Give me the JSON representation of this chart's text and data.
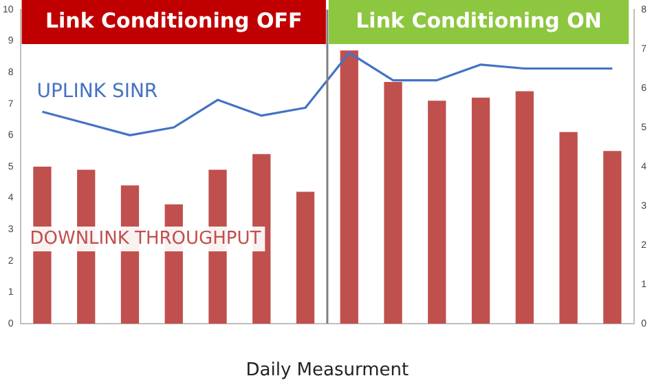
{
  "chart_data": {
    "type": "bar",
    "categories": [
      null,
      null,
      null,
      null,
      null,
      null,
      null,
      null,
      null,
      null,
      null,
      null,
      null,
      null
    ],
    "xlabel": "Daily Measurment",
    "series": [
      {
        "name": "DOWNLINK THROUGHPUT",
        "color": "#c0504d",
        "values": [
          5.0,
          4.9,
          4.4,
          3.8,
          4.9,
          5.4,
          4.2,
          8.7,
          7.7,
          7.1,
          7.2,
          7.4,
          6.1,
          5.5
        ]
      },
      {
        "name": "UPLINK SINR",
        "type": "line",
        "axis": "y2",
        "color": "#4472c4",
        "values": [
          5.4,
          5.1,
          4.8,
          5.0,
          5.7,
          5.3,
          5.5,
          6.9,
          6.2,
          6.2,
          6.6,
          6.5,
          6.5,
          6.5
        ]
      }
    ],
    "ylim": [
      0,
      10
    ],
    "yticks": [
      0,
      1,
      2,
      3,
      4,
      5,
      6,
      7,
      8,
      9,
      10
    ],
    "y2lim": [
      0,
      8
    ],
    "y2ticks": [
      0,
      1,
      2,
      3,
      4,
      5,
      6,
      7,
      8
    ],
    "annotations": [
      "Link Conditioning OFF",
      "Link Conditioning ON"
    ],
    "grid": false,
    "legend": false,
    "marker": "none",
    "line_style": "solid"
  }
}
